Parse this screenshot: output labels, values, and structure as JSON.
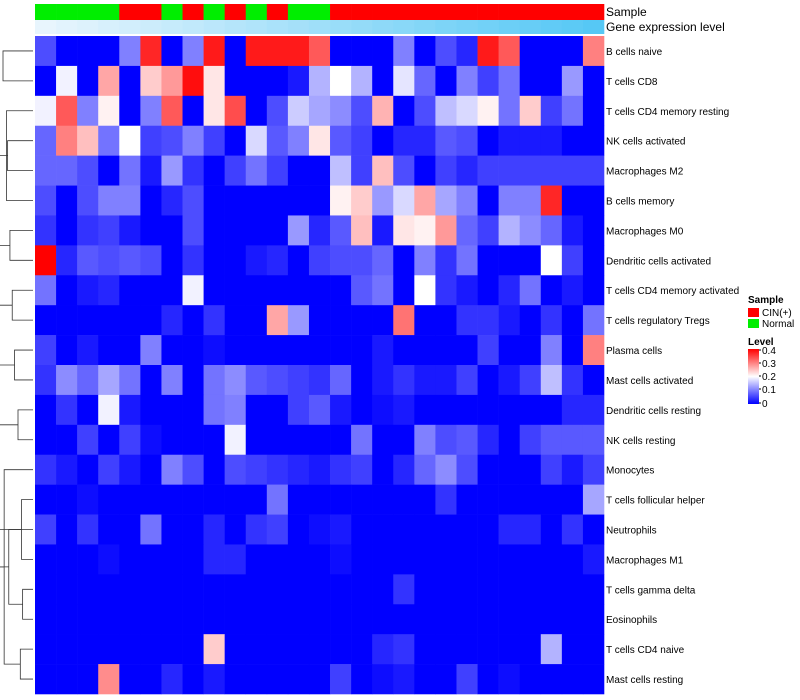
{
  "chart_data": {
    "type": "heatmap",
    "title": "",
    "annotation_labels": {
      "sample": "Sample",
      "gene_expression": "Gene expression level"
    },
    "legend": {
      "sample_title": "Sample",
      "sample_entries": [
        {
          "label": "CIN(+)",
          "color": "#ff0000"
        },
        {
          "label": "Normal",
          "color": "#00ee00"
        }
      ],
      "level_title": "Level",
      "level_ticks": [
        "0.4",
        "0.3",
        "0.2",
        "0.1",
        "0"
      ],
      "level_range": [
        0,
        0.4
      ],
      "level_colors": [
        "#0000ff",
        "#ffffff",
        "#ff0000"
      ]
    },
    "sample_annotation": [
      "Normal",
      "Normal",
      "Normal",
      "Normal",
      "CIN(+)",
      "CIN(+)",
      "Normal",
      "CIN(+)",
      "Normal",
      "CIN(+)",
      "Normal",
      "CIN(+)",
      "Normal",
      "Normal",
      "CIN(+)",
      "CIN(+)",
      "CIN(+)",
      "CIN(+)",
      "CIN(+)",
      "CIN(+)",
      "CIN(+)",
      "CIN(+)",
      "CIN(+)",
      "CIN(+)",
      "CIN(+)",
      "CIN(+)",
      "CIN(+)"
    ],
    "gene_expression_annotation": [
      0.02,
      0.04,
      0.06,
      0.08,
      0.1,
      0.12,
      0.14,
      0.16,
      0.18,
      0.2,
      0.22,
      0.24,
      0.26,
      0.28,
      0.3,
      0.32,
      0.34,
      0.36,
      0.38,
      0.4,
      0.42,
      0.44,
      0.46,
      0.48,
      0.5,
      0.52,
      0.54
    ],
    "gene_expression_colors": [
      "#e8f5fd",
      "#56c8f5"
    ],
    "rows": [
      "B cells naive",
      "T cells CD8",
      "T cells CD4 memory resting",
      "NK cells activated",
      "Macrophages M2",
      "B cells memory",
      "Macrophages M0",
      "Dendritic cells activated",
      "T cells CD4 memory activated",
      "T cells regulatory  Tregs",
      "Plasma cells",
      "Mast cells activated",
      "Dendritic cells resting",
      "NK cells resting",
      "Monocytes",
      "T cells follicular helper",
      "Neutrophils",
      "Macrophages M1",
      "T cells gamma delta",
      "Eosinophils",
      "T cells CD4 naive",
      "Mast cells resting"
    ],
    "values": [
      [
        0.06,
        0,
        0,
        0,
        0.1,
        0.37,
        0,
        0.1,
        0.38,
        0,
        0.38,
        0.38,
        0.38,
        0.33,
        0,
        0,
        0,
        0.1,
        0,
        0.06,
        0.03,
        0.38,
        0.33,
        0,
        0,
        0,
        0.3
      ],
      [
        0,
        0.19,
        0,
        0.27,
        0,
        0.24,
        0.28,
        0.39,
        0.22,
        0,
        0,
        0,
        0.02,
        0.14,
        0.2,
        0.14,
        0,
        0.18,
        0.08,
        0,
        0.1,
        0.05,
        0.09,
        0,
        0,
        0.12,
        0
      ],
      [
        0.19,
        0.33,
        0.1,
        0.21,
        0,
        0.1,
        0.33,
        0,
        0.22,
        0.34,
        0,
        0.06,
        0.16,
        0.13,
        0.11,
        0.06,
        0.26,
        0,
        0.06,
        0.15,
        0.17,
        0.21,
        0.09,
        0.24,
        0.05,
        0.09,
        0
      ],
      [
        0.08,
        0.3,
        0.25,
        0.09,
        0.2,
        0.05,
        0.06,
        0.1,
        0.05,
        0,
        0.17,
        0.07,
        0.1,
        0.22,
        0.07,
        0.05,
        0,
        0.03,
        0.03,
        0.07,
        0.06,
        0,
        0.02,
        0.02,
        0.02,
        0,
        0
      ],
      [
        0.08,
        0.08,
        0.06,
        0,
        0.09,
        0.02,
        0.12,
        0.04,
        0,
        0.05,
        0.09,
        0.05,
        0,
        0,
        0.15,
        0.05,
        0.25,
        0.06,
        0,
        0.05,
        0.03,
        0.05,
        0.05,
        0.05,
        0.05,
        0.05,
        0.05
      ],
      [
        0.06,
        0,
        0.06,
        0.1,
        0.1,
        0,
        0.03,
        0.06,
        0,
        0,
        0,
        0,
        0,
        0,
        0.21,
        0.24,
        0.12,
        0.17,
        0.27,
        0.13,
        0.1,
        0,
        0.1,
        0.1,
        0.37,
        0,
        0
      ],
      [
        0.04,
        0,
        0.04,
        0.05,
        0.02,
        0,
        0,
        0.06,
        0,
        0,
        0,
        0,
        0.12,
        0.03,
        0.07,
        0.25,
        0.02,
        0.22,
        0.21,
        0.28,
        0.08,
        0.05,
        0.14,
        0.11,
        0.08,
        0.02,
        0
      ],
      [
        0.4,
        0.03,
        0.07,
        0.06,
        0.07,
        0.06,
        0,
        0.04,
        0,
        0,
        0.02,
        0.03,
        0,
        0.05,
        0.06,
        0.06,
        0.08,
        0,
        0.1,
        0.04,
        0.09,
        0,
        0,
        0,
        0.2,
        0.05,
        0
      ],
      [
        0.09,
        0,
        0.02,
        0.03,
        0,
        0,
        0,
        0.19,
        0,
        0,
        0,
        0,
        0,
        0,
        0,
        0.07,
        0.09,
        0,
        0.2,
        0.04,
        0.02,
        0,
        0.03,
        0.09,
        0,
        0.02,
        0
      ],
      [
        0,
        0,
        0,
        0,
        0,
        0,
        0.03,
        0,
        0.04,
        0,
        0,
        0.27,
        0.12,
        0,
        0,
        0,
        0,
        0.31,
        0,
        0,
        0.04,
        0.04,
        0.02,
        0,
        0.04,
        0,
        0.09
      ],
      [
        0.05,
        0,
        0.02,
        0,
        0,
        0.1,
        0,
        0,
        0.01,
        0,
        0,
        0,
        0,
        0,
        0,
        0,
        0.02,
        0,
        0,
        0,
        0,
        0.05,
        0,
        0,
        0.1,
        0,
        0.3
      ],
      [
        0.04,
        0.11,
        0.08,
        0.13,
        0.09,
        0,
        0.1,
        0,
        0.09,
        0.11,
        0.07,
        0.06,
        0.05,
        0.04,
        0.08,
        0,
        0.02,
        0.04,
        0.02,
        0.02,
        0.05,
        0,
        0.02,
        0.05,
        0.15,
        0.04,
        0
      ],
      [
        0,
        0.04,
        0,
        0.19,
        0.02,
        0,
        0,
        0,
        0.09,
        0.1,
        0,
        0,
        0.05,
        0.07,
        0.02,
        0,
        0.01,
        0.02,
        0,
        0,
        0,
        0,
        0,
        0,
        0,
        0.03,
        0.03
      ],
      [
        0,
        0,
        0.05,
        0,
        0.05,
        0.01,
        0,
        0,
        0,
        0.19,
        0,
        0,
        0,
        0,
        0,
        0.09,
        0,
        0,
        0.1,
        0.06,
        0.07,
        0.03,
        0,
        0.05,
        0.07,
        0.07,
        0.07
      ],
      [
        0.04,
        0.02,
        0,
        0.05,
        0.02,
        0,
        0.1,
        0.06,
        0,
        0.06,
        0.05,
        0.04,
        0.03,
        0.02,
        0.04,
        0.05,
        0,
        0.03,
        0.08,
        0.11,
        0.06,
        0,
        0,
        0,
        0.05,
        0.02,
        0.05
      ],
      [
        0,
        0,
        0.01,
        0,
        0,
        0,
        0,
        0,
        0,
        0,
        0,
        0.09,
        0,
        0,
        0,
        0,
        0,
        0,
        0,
        0.04,
        0,
        0,
        0,
        0,
        0,
        0,
        0.13
      ],
      [
        0.05,
        0,
        0.04,
        0,
        0,
        0.09,
        0,
        0,
        0.03,
        0,
        0.04,
        0.05,
        0,
        0.01,
        0.02,
        0,
        0,
        0,
        0,
        0,
        0,
        0,
        0.03,
        0.03,
        0,
        0.04,
        0
      ],
      [
        0,
        0,
        0,
        0.01,
        0,
        0,
        0,
        0,
        0.03,
        0.03,
        0,
        0,
        0,
        0,
        0.01,
        0,
        0,
        0,
        0,
        0,
        0,
        0,
        0,
        0,
        0,
        0,
        0.02
      ],
      [
        0,
        0,
        0,
        0,
        0,
        0,
        0,
        0,
        0,
        0,
        0,
        0,
        0,
        0,
        0,
        0,
        0,
        0.04,
        0,
        0,
        0,
        0,
        0,
        0,
        0,
        0,
        0
      ],
      [
        0,
        0,
        0,
        0,
        0,
        0,
        0,
        0,
        0,
        0,
        0,
        0,
        0,
        0,
        0,
        0,
        0,
        0,
        0,
        0,
        0,
        0,
        0,
        0,
        0,
        0,
        0
      ],
      [
        0,
        0,
        0,
        0,
        0,
        0,
        0,
        0,
        0.24,
        0,
        0,
        0,
        0,
        0,
        0,
        0,
        0.03,
        0.04,
        0,
        0,
        0,
        0,
        0,
        0,
        0.14,
        0,
        0
      ],
      [
        0,
        0,
        0,
        0.29,
        0,
        0,
        0.03,
        0,
        0.02,
        0,
        0,
        0,
        0,
        0,
        0.05,
        0,
        0.01,
        0.02,
        0,
        0,
        0.05,
        0,
        0.01,
        0,
        0,
        0,
        0
      ]
    ],
    "row_dendrogram": [
      [
        "leaf",
        19,
        18
      ],
      [
        "leaf",
        17,
        15
      ],
      [
        "node",
        20,
        21
      ],
      [
        "node",
        22,
        16
      ],
      [
        "leaf",
        12,
        13
      ],
      [
        "node",
        24,
        14
      ],
      [
        "node",
        23,
        25
      ],
      [
        "leaf",
        10,
        11
      ],
      [
        "node",
        26,
        27
      ],
      [
        "leaf",
        8,
        9
      ],
      [
        "node",
        28,
        29
      ],
      [
        "leaf",
        6,
        7
      ],
      [
        "node",
        30,
        31
      ],
      [
        "leaf",
        3,
        4
      ],
      [
        "leaf",
        2,
        5
      ],
      [
        "node",
        32,
        34
      ],
      [
        "node",
        33,
        35
      ],
      [
        "leaf",
        1,
        0
      ]
    ]
  }
}
